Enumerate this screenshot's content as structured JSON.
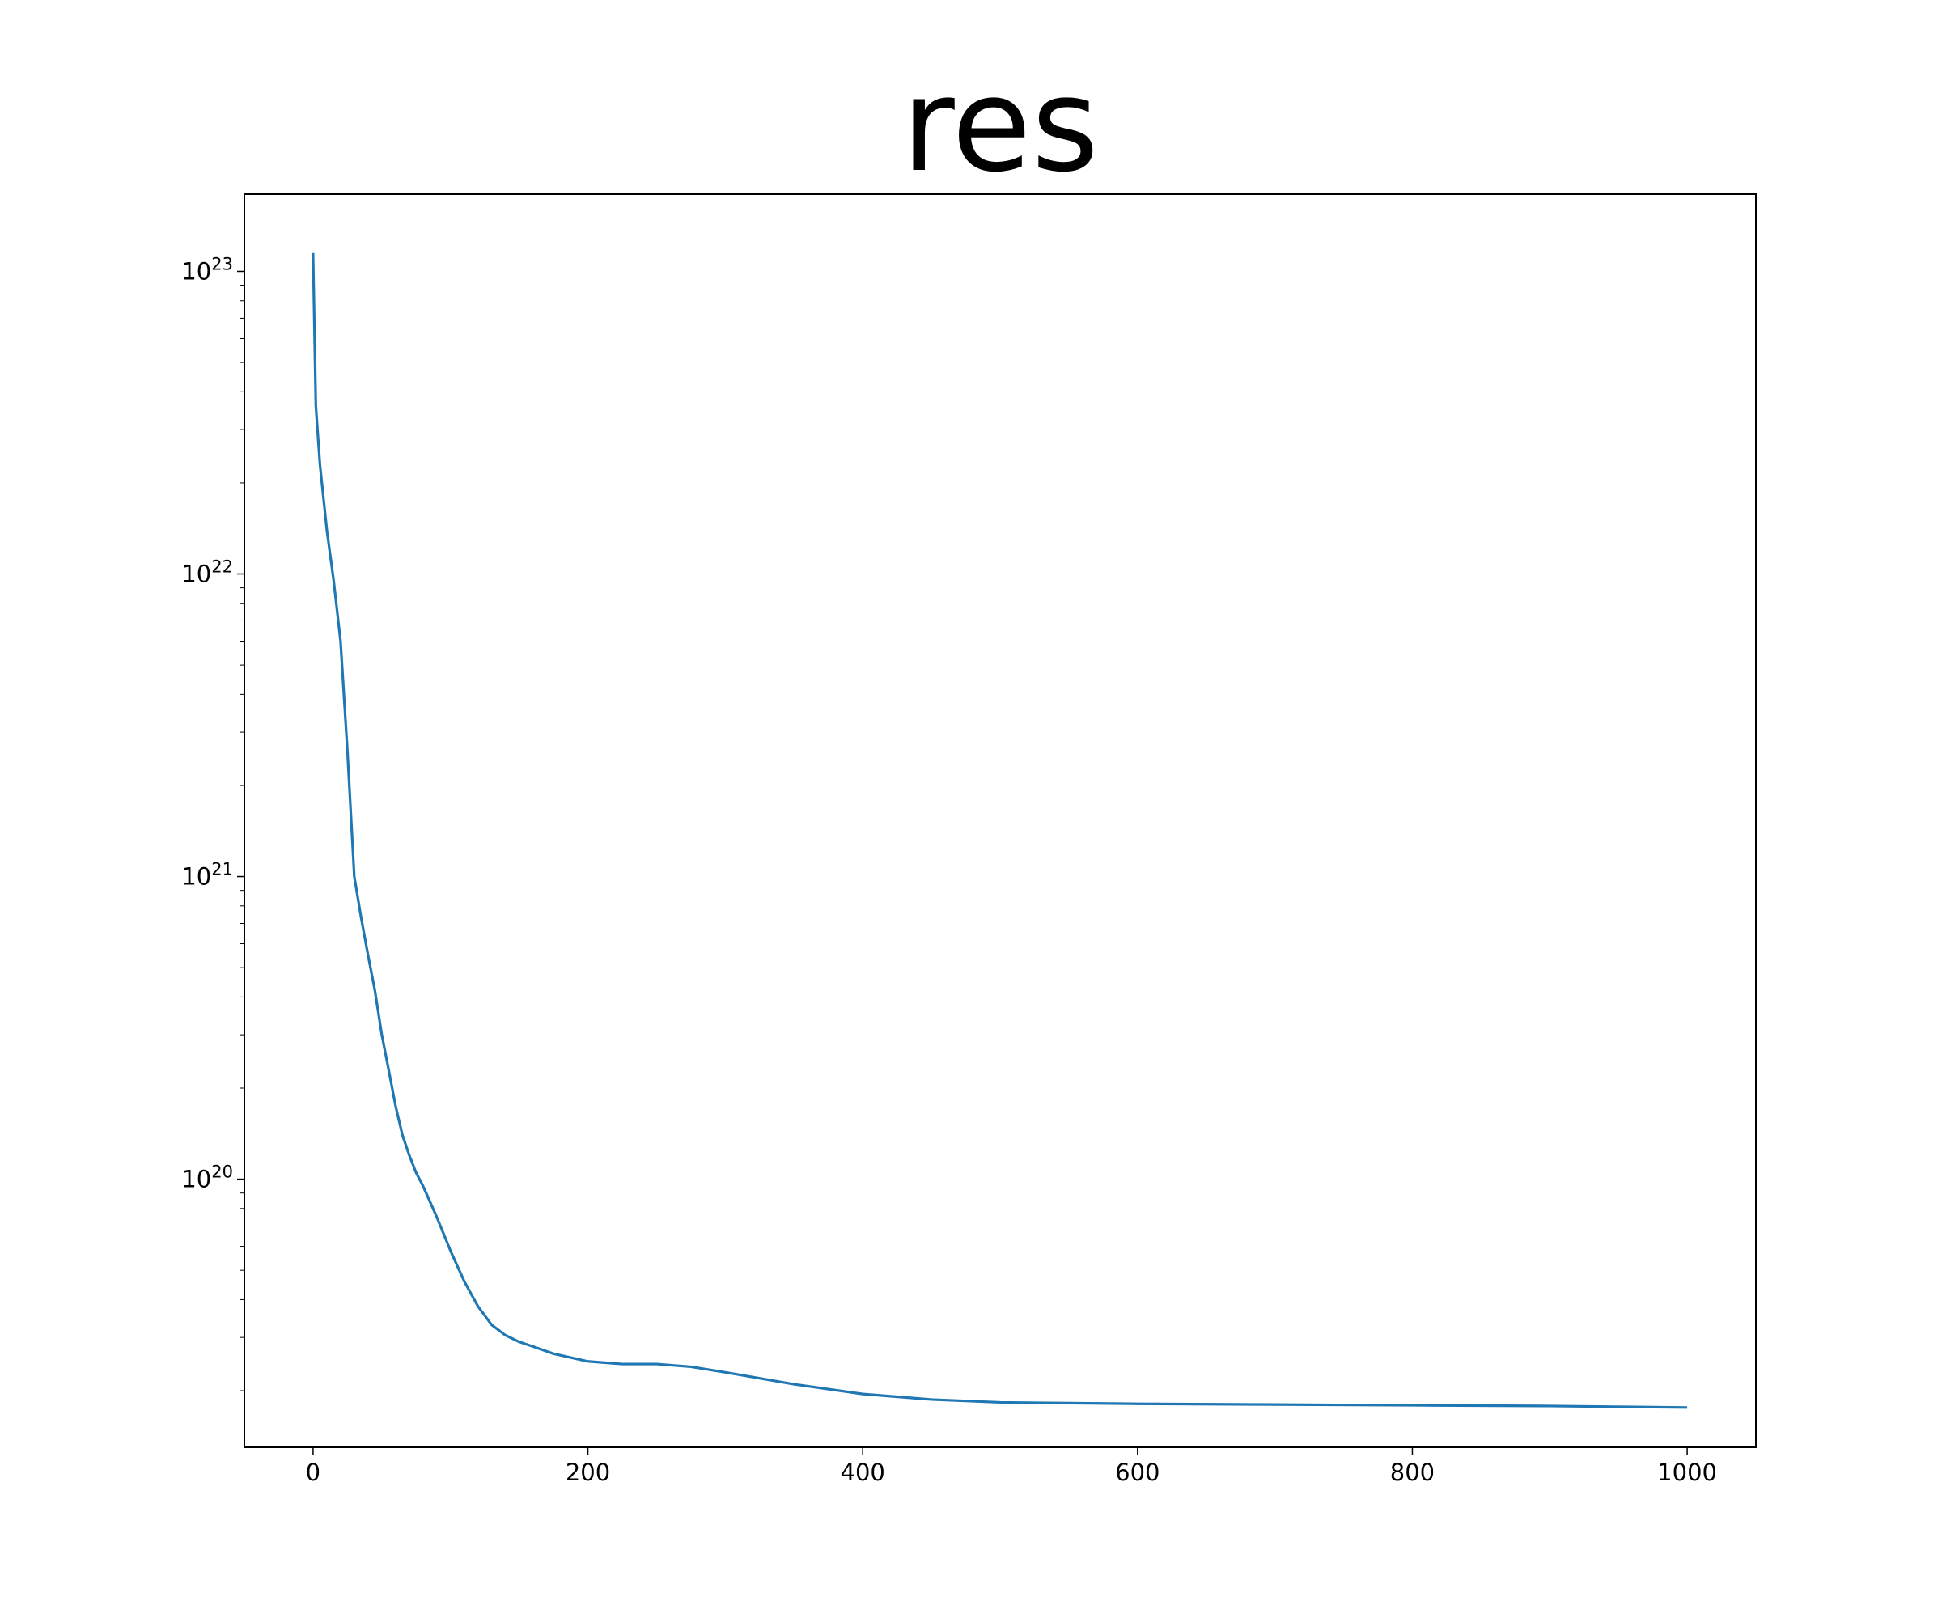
{
  "chart_data": {
    "type": "line",
    "title": "res",
    "xlabel": "",
    "ylabel": "",
    "xlim": [
      -50,
      1050
    ],
    "ylim": [
      1.3e+19,
      1.8e+23
    ],
    "yscale": "log",
    "grid": false,
    "x_ticks": [
      0,
      200,
      400,
      600,
      800,
      1000
    ],
    "y_ticks": [
      {
        "value": 1e+20,
        "base": "10",
        "exp": "20"
      },
      {
        "value": 1e+21,
        "base": "10",
        "exp": "21"
      },
      {
        "value": 1e+22,
        "base": "10",
        "exp": "22"
      },
      {
        "value": 1e+23,
        "base": "10",
        "exp": "23"
      }
    ],
    "line_color": "#1f77b4",
    "series": [
      {
        "x": [
          0,
          2,
          5,
          10,
          15,
          20,
          25,
          30,
          35,
          40,
          45,
          50,
          55,
          60,
          65,
          70,
          75,
          80,
          90,
          100,
          110,
          120,
          130,
          140,
          150,
          160,
          175,
          200,
          225,
          250,
          275,
          300,
          350,
          400,
          450,
          500,
          550,
          600,
          700,
          800,
          900,
          1000
        ],
        "y": [
          1.15e+23,
          3.6e+22,
          2.3e+22,
          1.4e+22,
          9.5e+21,
          6e+21,
          2.6e+21,
          1e+21,
          7.3e+20,
          5.5e+20,
          4.2e+20,
          3e+20,
          2.3e+20,
          1.75e+20,
          1.4e+20,
          1.2e+20,
          1.05e+20,
          9.5e+19,
          7.5e+19,
          5.8e+19,
          4.6e+19,
          3.8e+19,
          3.3e+19,
          3.05e+19,
          2.9e+19,
          2.8e+19,
          2.65e+19,
          2.5e+19,
          2.45e+19,
          2.45e+19,
          2.4e+19,
          2.3e+19,
          2.1e+19,
          1.95e+19,
          1.87e+19,
          1.83e+19,
          1.82e+19,
          1.81e+19,
          1.8e+19,
          1.79e+19,
          1.78e+19,
          1.76e+19
        ]
      }
    ]
  }
}
